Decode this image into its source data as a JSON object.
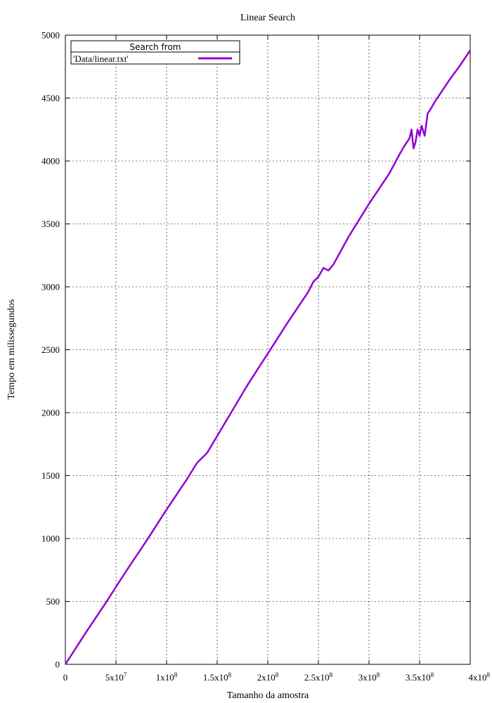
{
  "chart_data": {
    "type": "line",
    "title": "Linear Search",
    "xlabel": "Tamanho da amostra",
    "ylabel": "Tempo em milissegundos",
    "xlim": [
      0,
      400000000
    ],
    "ylim": [
      0,
      5000
    ],
    "grid": true,
    "legend": {
      "title": "Search from",
      "placement": "top-left"
    },
    "x_ticks": [
      {
        "value": 0,
        "label": "0",
        "exp": ""
      },
      {
        "value": 50000000,
        "label": "5x10",
        "exp": "7"
      },
      {
        "value": 100000000,
        "label": "1x10",
        "exp": "8"
      },
      {
        "value": 150000000,
        "label": "1.5x10",
        "exp": "8"
      },
      {
        "value": 200000000,
        "label": "2x10",
        "exp": "8"
      },
      {
        "value": 250000000,
        "label": "2.5x10",
        "exp": "8"
      },
      {
        "value": 300000000,
        "label": "3x10",
        "exp": "8"
      },
      {
        "value": 350000000,
        "label": "3.5x10",
        "exp": "8"
      },
      {
        "value": 400000000,
        "label": "4x10",
        "exp": "8"
      }
    ],
    "y_ticks": [
      {
        "value": 0,
        "label": "0"
      },
      {
        "value": 500,
        "label": "500"
      },
      {
        "value": 1000,
        "label": "1000"
      },
      {
        "value": 1500,
        "label": "1500"
      },
      {
        "value": 2000,
        "label": "2000"
      },
      {
        "value": 2500,
        "label": "2500"
      },
      {
        "value": 3000,
        "label": "3000"
      },
      {
        "value": 3500,
        "label": "3500"
      },
      {
        "value": 4000,
        "label": "4000"
      },
      {
        "value": 4500,
        "label": "4500"
      },
      {
        "value": 5000,
        "label": "5000"
      }
    ],
    "series": [
      {
        "name": "'Data/linear.txt'",
        "color": "#9400d3",
        "x": [
          0,
          20000000,
          40000000,
          60000000,
          80000000,
          100000000,
          120000000,
          130000000,
          140000000,
          160000000,
          180000000,
          200000000,
          220000000,
          240000000,
          245000000,
          250000000,
          255000000,
          260000000,
          265000000,
          280000000,
          300000000,
          310000000,
          320000000,
          330000000,
          335000000,
          340000000,
          342000000,
          344000000,
          346000000,
          348000000,
          350000000,
          352000000,
          355000000,
          358000000,
          360000000,
          365000000,
          370000000,
          380000000,
          390000000,
          400000000
        ],
        "y": [
          0,
          250,
          490,
          740,
          980,
          1230,
          1470,
          1600,
          1680,
          1950,
          2220,
          2470,
          2720,
          2960,
          3040,
          3080,
          3150,
          3130,
          3180,
          3400,
          3660,
          3780,
          3900,
          4050,
          4120,
          4180,
          4250,
          4100,
          4150,
          4250,
          4200,
          4280,
          4200,
          4380,
          4400,
          4470,
          4530,
          4650,
          4760,
          4880
        ]
      }
    ]
  }
}
